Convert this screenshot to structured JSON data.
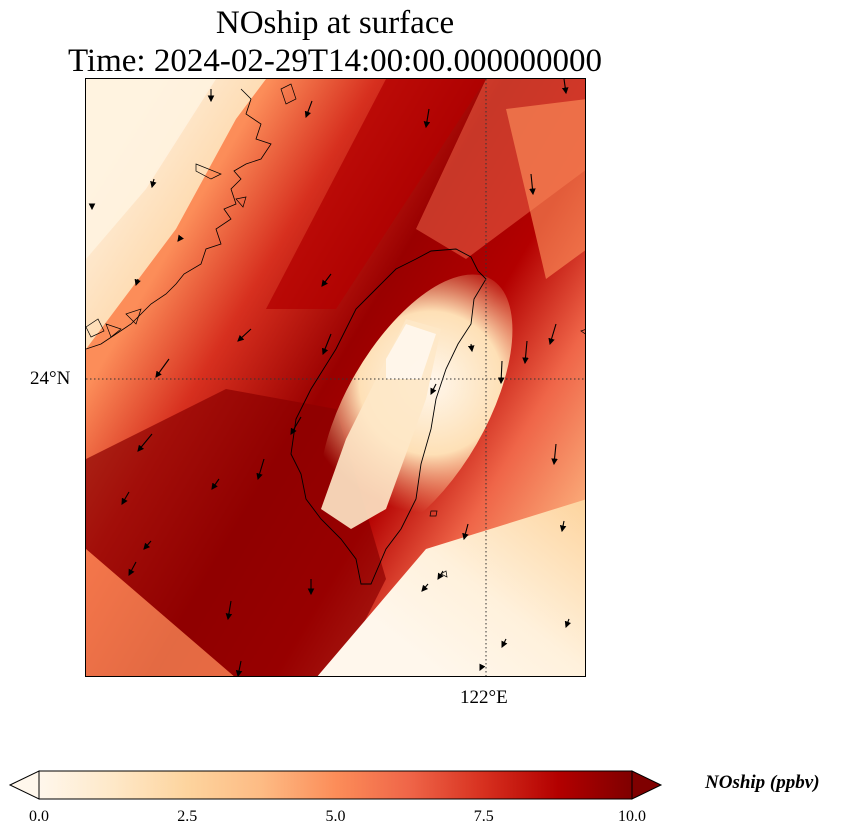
{
  "title_line1": "NOship at surface",
  "title_line2": "Time: 2024-02-29T14:00:00.000000000",
  "map": {
    "lat_labels": [
      "24°N"
    ],
    "lon_labels": [
      "122°E"
    ],
    "gridlines": "dotted",
    "coastlines": true,
    "wind_vectors": true
  },
  "colorbar": {
    "label": "NOship (ppbv)",
    "ticks": [
      "0.0",
      "2.5",
      "5.0",
      "7.5",
      "10.0"
    ],
    "min": 0.0,
    "max": 10.0,
    "extend": "both",
    "colormap": "OrRd",
    "colors": [
      "#fff7ec",
      "#fee8c8",
      "#fdd49e",
      "#fdbb84",
      "#fc8d59",
      "#ef6548",
      "#d7301f",
      "#b30000",
      "#7f0000"
    ]
  }
}
